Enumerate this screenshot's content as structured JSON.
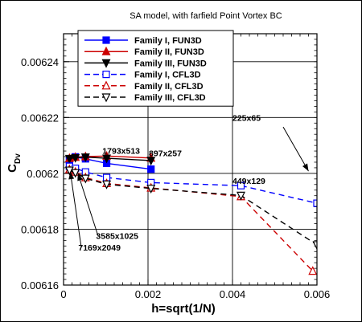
{
  "chart_data": {
    "type": "line",
    "title": "SA model, with farfield Point Vortex BC",
    "xlabel": "h=sqrt(1/N)",
    "ylabel": "C_Dv",
    "xlim": [
      0,
      0.006
    ],
    "ylim": [
      0.00616,
      0.00625
    ],
    "xticks": [
      0,
      0.002,
      0.004,
      0.006
    ],
    "xtick_labels": [
      "0",
      "0.002",
      "0.004",
      "0.006"
    ],
    "yticks": [
      0.00616,
      0.00618,
      0.0062,
      0.00622,
      0.00624
    ],
    "ytick_labels": [
      "0.00616",
      "0.00618",
      "0.0062",
      "0.00622",
      "0.00624"
    ],
    "grid": true,
    "legend_position": "top-left",
    "series": [
      {
        "name": "Family I, FUN3D",
        "color": "#0000ff",
        "dash": "solid",
        "marker": "square-filled",
        "x": [
          0.00014,
          0.00028,
          0.00052,
          0.00102,
          0.00207
        ],
        "y": [
          0.0062048,
          0.0062059,
          0.0062052,
          0.0062036,
          0.0062015
        ]
      },
      {
        "name": "Family II, FUN3D",
        "color": "#cc0000",
        "dash": "solid",
        "marker": "triangle-up-filled",
        "x": [
          0.00014,
          0.00028,
          0.00052,
          0.00102,
          0.00207
        ],
        "y": [
          0.0062054,
          0.0062058,
          0.006206,
          0.0062062,
          0.0062055
        ]
      },
      {
        "name": "Family III, FUN3D",
        "color": "#000000",
        "dash": "solid",
        "marker": "triangle-down-filled",
        "x": [
          0.00014,
          0.00028,
          0.00052,
          0.00102,
          0.00207
        ],
        "y": [
          0.0062053,
          0.0062056,
          0.0062058,
          0.0062054,
          0.0062046
        ]
      },
      {
        "name": "Family I, CFL3D",
        "color": "#0000ff",
        "dash": "dashed",
        "marker": "square-open",
        "x": [
          0.00014,
          0.00028,
          0.00052,
          0.00102,
          0.00207,
          0.0042,
          0.006
        ],
        "y": [
          0.0062025,
          0.0062018,
          0.0062005,
          0.0061985,
          0.0061967,
          0.0061956,
          0.0061893
        ]
      },
      {
        "name": "Family II, CFL3D",
        "color": "#cc0000",
        "dash": "dashed",
        "marker": "triangle-up-open",
        "x": [
          0.00014,
          0.00028,
          0.00052,
          0.00102,
          0.00207,
          0.0042,
          0.0059
        ],
        "y": [
          0.0062014,
          0.0062005,
          0.0061985,
          0.0061964,
          0.0061948,
          0.0061917,
          0.006165
        ]
      },
      {
        "name": "Family III, CFL3D",
        "color": "#000000",
        "dash": "dashed",
        "marker": "triangle-down-open",
        "x": [
          0.00014,
          0.00028,
          0.00052,
          0.00102,
          0.00207,
          0.0042,
          0.006
        ],
        "y": [
          0.0062011,
          0.0062002,
          0.0061982,
          0.0061961,
          0.0061946,
          0.0061921,
          0.0061744
        ]
      }
    ],
    "annotations": [
      {
        "text": "1793x513",
        "x": 0.00092,
        "y": 0.006207
      },
      {
        "text": "897x257",
        "x": 0.00202,
        "y": 0.0062062
      },
      {
        "text": "449x129",
        "x": 0.004,
        "y": 0.0061962
      },
      {
        "text": "225x65",
        "x": 0.004,
        "y": 0.0062188
      },
      {
        "text": "3585x1025",
        "x": 0.00077,
        "y": 0.0061765
      },
      {
        "text": "7169x2049",
        "x": 0.00035,
        "y": 0.0061723
      }
    ]
  }
}
